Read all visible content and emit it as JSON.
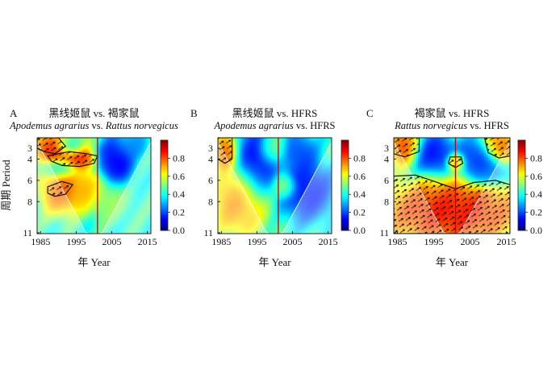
{
  "figure": {
    "x_label": "年 Year",
    "y_label": "周期 Period"
  },
  "chart_data": [
    {
      "type": "heatmap",
      "panel_label": "A",
      "title_cn": "黑线姬鼠 vs. 褐家鼠",
      "title_en": [
        {
          "text": "Apodemus agrarius",
          "italic": true
        },
        {
          "text": " vs. ",
          "italic": false
        },
        {
          "text": "Rattus norvegicus",
          "italic": true
        }
      ],
      "x_ticks": [
        1985,
        1995,
        2005,
        2015
      ],
      "y_ticks": [
        3,
        4,
        6,
        8,
        11
      ],
      "xlim": [
        1984,
        2016
      ],
      "ylim": [
        2,
        11
      ],
      "colorbar": {
        "ticks": [
          "0.0",
          "0.2",
          "0.4",
          "0.6",
          "0.8"
        ],
        "range": [
          0,
          1
        ]
      },
      "divider_year": 2001,
      "high_regions": [
        {
          "cx": 1990,
          "cy": 3.0,
          "rx": 6.0,
          "ry": 1.3,
          "v": 0.95
        },
        {
          "cx": 1996,
          "cy": 4.1,
          "rx": 3.5,
          "ry": 0.8,
          "v": 0.9
        },
        {
          "cx": 1991,
          "cy": 7.0,
          "rx": 5.0,
          "ry": 1.8,
          "v": 0.85
        },
        {
          "cx": 1998,
          "cy": 6.7,
          "rx": 3.5,
          "ry": 1.6,
          "v": 0.75
        },
        {
          "cx": 2004,
          "cy": 7.8,
          "rx": 4.5,
          "ry": 1.5,
          "v": 0.55
        }
      ],
      "low_regions": [
        {
          "cx": 1993,
          "cy": 2.7,
          "rx": 3.0,
          "ry": 0.8,
          "v": 0.15
        },
        {
          "cx": 1990,
          "cy": 4.9,
          "rx": 4.0,
          "ry": 0.7,
          "v": 0.35
        },
        {
          "cx": 2006,
          "cy": 4.3,
          "rx": 4.0,
          "ry": 1.8,
          "v": 0.05
        },
        {
          "cx": 2011,
          "cy": 2.8,
          "rx": 3.0,
          "ry": 1.0,
          "v": 0.25
        }
      ],
      "significant_regions": [
        [
          [
            1984,
            2
          ],
          [
            1990,
            2
          ],
          [
            1992,
            2.8
          ],
          [
            1989,
            3.5
          ],
          [
            1986,
            3.3
          ],
          [
            1984,
            3
          ]
        ],
        [
          [
            1987,
            3.7
          ],
          [
            1993,
            3.3
          ],
          [
            1998,
            3.5
          ],
          [
            2001,
            3.7
          ],
          [
            2000,
            4.4
          ],
          [
            1996,
            4.7
          ],
          [
            1991,
            4.6
          ],
          [
            1988,
            4.2
          ]
        ],
        [
          [
            1987,
            6.6
          ],
          [
            1991,
            6.1
          ],
          [
            1994,
            6.4
          ],
          [
            1992,
            7.3
          ],
          [
            1989,
            7.5
          ],
          [
            1987,
            7.2
          ]
        ]
      ]
    },
    {
      "type": "heatmap",
      "panel_label": "B",
      "title_cn": "黑线姬鼠 vs. HFRS",
      "title_en": [
        {
          "text": "Apodemus agrarius",
          "italic": true
        },
        {
          "text": " vs. HFRS",
          "italic": false
        }
      ],
      "x_ticks": [
        1985,
        1995,
        2005,
        2015
      ],
      "y_ticks": [
        3,
        4,
        6,
        8,
        11
      ],
      "xlim": [
        1984,
        2016
      ],
      "ylim": [
        2,
        11
      ],
      "colorbar": {
        "ticks": [
          "0.0",
          "0.2",
          "0.4",
          "0.6",
          "0.8"
        ],
        "range": [
          0,
          1
        ]
      },
      "divider_year": 2001,
      "high_regions": [
        {
          "cx": 1990,
          "cy": 8.0,
          "rx": 6.5,
          "ry": 2.6,
          "v": 0.8
        },
        {
          "cx": 1986,
          "cy": 3.3,
          "rx": 2.5,
          "ry": 1.5,
          "v": 0.85
        },
        {
          "cx": 1999,
          "cy": 3.0,
          "rx": 3.0,
          "ry": 1.2,
          "v": 0.55
        },
        {
          "cx": 2003,
          "cy": 6.6,
          "rx": 2.5,
          "ry": 0.9,
          "v": 0.6
        }
      ],
      "low_regions": [
        {
          "cx": 1995,
          "cy": 4.4,
          "rx": 4.5,
          "ry": 2.8,
          "v": 0.05
        },
        {
          "cx": 2009,
          "cy": 7.0,
          "rx": 6.0,
          "ry": 2.2,
          "v": 0.08
        },
        {
          "cx": 2007,
          "cy": 3.6,
          "rx": 3.5,
          "ry": 1.6,
          "v": 0.15
        }
      ],
      "significant_regions": [
        [
          [
            1984,
            2
          ],
          [
            1988,
            2
          ],
          [
            1988,
            4
          ],
          [
            1986,
            4.4
          ],
          [
            1984,
            4
          ]
        ]
      ]
    },
    {
      "type": "heatmap",
      "panel_label": "C",
      "title_cn": "褐家鼠 vs. HFRS",
      "title_en": [
        {
          "text": "Rattus norvegicus",
          "italic": true
        },
        {
          "text": " vs. HFRS",
          "italic": false
        }
      ],
      "x_ticks": [
        1985,
        1995,
        2005,
        2015
      ],
      "y_ticks": [
        3,
        4,
        6,
        8,
        11
      ],
      "xlim": [
        1984,
        2016
      ],
      "ylim": [
        2,
        11
      ],
      "colorbar": {
        "ticks": [
          "0.0",
          "0.2",
          "0.4",
          "0.6",
          "0.8"
        ],
        "range": [
          0,
          1
        ]
      },
      "divider_year": 2001,
      "high_regions": [
        {
          "cx": 2000,
          "cy": 9.0,
          "rx": 16.0,
          "ry": 2.5,
          "v": 0.95
        },
        {
          "cx": 1987,
          "cy": 2.9,
          "rx": 3.5,
          "ry": 1.4,
          "v": 0.9
        },
        {
          "cx": 2013,
          "cy": 2.8,
          "rx": 3.5,
          "ry": 1.3,
          "v": 0.85
        },
        {
          "cx": 2001,
          "cy": 4.3,
          "rx": 2.0,
          "ry": 0.7,
          "v": 0.9
        }
      ],
      "low_regions": [
        {
          "cx": 1995,
          "cy": 3.6,
          "rx": 5.0,
          "ry": 1.5,
          "v": 0.08
        },
        {
          "cx": 2007,
          "cy": 4.1,
          "rx": 4.5,
          "ry": 1.5,
          "v": 0.12
        },
        {
          "cx": 2010,
          "cy": 5.3,
          "rx": 4.0,
          "ry": 1.0,
          "v": 0.2
        }
      ],
      "significant_regions": [
        [
          [
            1984,
            2
          ],
          [
            1991,
            2
          ],
          [
            1991,
            3.3
          ],
          [
            1987,
            3.8
          ],
          [
            1984,
            3.5
          ]
        ],
        [
          [
            2009,
            2
          ],
          [
            2016,
            2
          ],
          [
            2016,
            3.7
          ],
          [
            2013,
            3.9
          ],
          [
            2010,
            3.4
          ]
        ],
        [
          [
            1999.5,
            3.8
          ],
          [
            2002.5,
            3.8
          ],
          [
            2003,
            4.4
          ],
          [
            2001,
            4.8
          ],
          [
            1999,
            4.4
          ]
        ],
        [
          [
            1984,
            5.6
          ],
          [
            1990,
            5.5
          ],
          [
            1996,
            6.2
          ],
          [
            2001,
            6.8
          ],
          [
            2006,
            6.2
          ],
          [
            2012,
            6.0
          ],
          [
            2016,
            6.4
          ],
          [
            2016,
            11
          ],
          [
            1984,
            11
          ]
        ]
      ]
    }
  ]
}
